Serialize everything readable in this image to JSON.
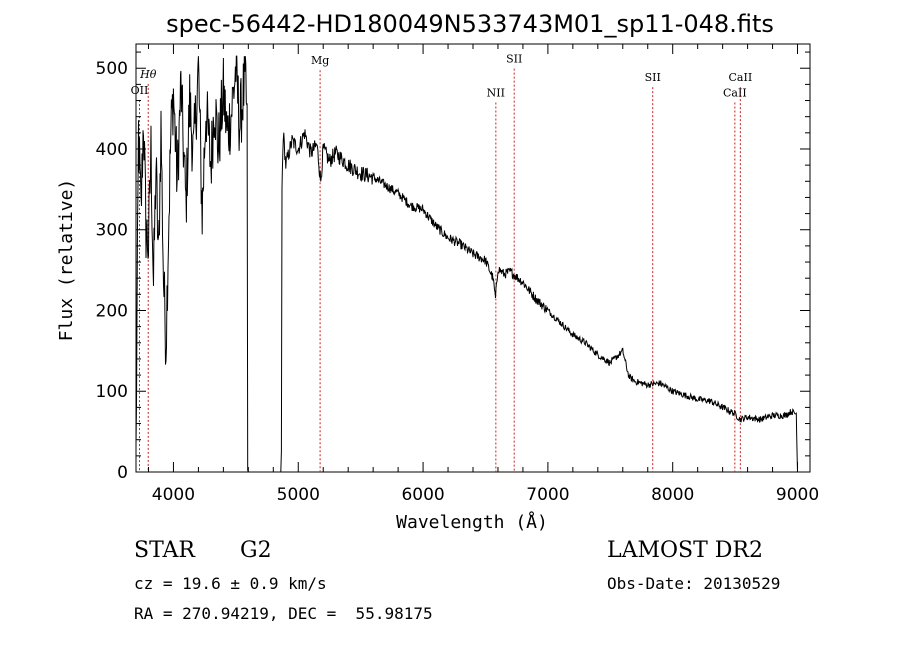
{
  "chart_data": {
    "type": "line",
    "title": "spec-56442-HD180049N533743M01_sp11-048.fits",
    "xlabel": "Wavelength (Å)",
    "ylabel": "Flux (relative)",
    "xlim": [
      3700,
      9100
    ],
    "ylim": [
      0,
      530
    ],
    "xticks": [
      4000,
      5000,
      6000,
      7000,
      8000,
      9000
    ],
    "yticks": [
      0,
      100,
      200,
      300,
      400,
      500
    ],
    "grid": false,
    "line_color": "#000000",
    "marker_color": "#cc2222",
    "series": [
      {
        "x": [
          3700,
          3720,
          3740,
          3760,
          3780,
          3800,
          3820,
          3840,
          3860,
          3880,
          3900,
          3920,
          3940,
          3960,
          3980,
          4000,
          4030,
          4060,
          4100,
          4130,
          4160,
          4200,
          4230,
          4260,
          4300,
          4330,
          4360,
          4400,
          4430,
          4460,
          4500,
          4530,
          4560,
          4580,
          4590,
          4595,
          4600,
          4610,
          4860,
          4865,
          4870,
          4880,
          4900,
          4950,
          5000,
          5050,
          5100,
          5150,
          5180,
          5200,
          5250,
          5300,
          5400,
          5500,
          5600,
          5700,
          5800,
          5900,
          6000,
          6100,
          6200,
          6300,
          6400,
          6500,
          6560,
          6580,
          6600,
          6650,
          6700,
          6800,
          6900,
          7000,
          7100,
          7200,
          7300,
          7400,
          7500,
          7600,
          7630,
          7650,
          7700,
          7800,
          7900,
          8000,
          8100,
          8200,
          8300,
          8400,
          8500,
          8540,
          8600,
          8700,
          8800,
          8900,
          8950,
          8990,
          9000
        ],
        "y": [
          20,
          420,
          320,
          440,
          300,
          280,
          400,
          230,
          380,
          260,
          430,
          240,
          160,
          300,
          420,
          470,
          360,
          480,
          330,
          460,
          390,
          500,
          320,
          450,
          380,
          460,
          400,
          470,
          420,
          440,
          500,
          430,
          470,
          480,
          420,
          20,
          0,
          0,
          0,
          20,
          350,
          420,
          380,
          410,
          400,
          420,
          395,
          405,
          360,
          400,
          385,
          395,
          380,
          370,
          365,
          355,
          345,
          330,
          325,
          305,
          290,
          282,
          270,
          262,
          240,
          215,
          252,
          245,
          248,
          235,
          215,
          200,
          185,
          170,
          160,
          145,
          135,
          150,
          130,
          118,
          112,
          108,
          110,
          100,
          95,
          90,
          88,
          80,
          72,
          65,
          68,
          65,
          70,
          70,
          75,
          72,
          0
        ]
      }
    ],
    "lines": [
      {
        "label": "Hθ",
        "x": 3798,
        "label_y": 488,
        "pos": "high"
      },
      {
        "label": "OII",
        "x": 3728,
        "label_y": 468,
        "pos": "low"
      },
      {
        "label": "Mg",
        "x": 5175,
        "label_y": 505,
        "pos": "high"
      },
      {
        "label": "SII",
        "x": 6730,
        "label_y": 507,
        "pos": "high"
      },
      {
        "label": "NII",
        "x": 6583,
        "label_y": 465,
        "pos": "low"
      },
      {
        "label": "SII",
        "x": 7840,
        "label_y": 484,
        "pos": "high"
      },
      {
        "label": "CaII",
        "x": 8542,
        "label_y": 484,
        "pos": "high"
      },
      {
        "label": "CaII",
        "x": 8498,
        "label_y": 465,
        "pos": "low"
      }
    ]
  },
  "info": {
    "class_label": "STAR",
    "subclass": "G2",
    "survey": "LAMOST DR2",
    "cz": "cz = 19.6 ± 0.9 km/s",
    "obs_date": "Obs-Date: 20130529",
    "coords": "RA = 270.94219, DEC =  55.98175"
  }
}
